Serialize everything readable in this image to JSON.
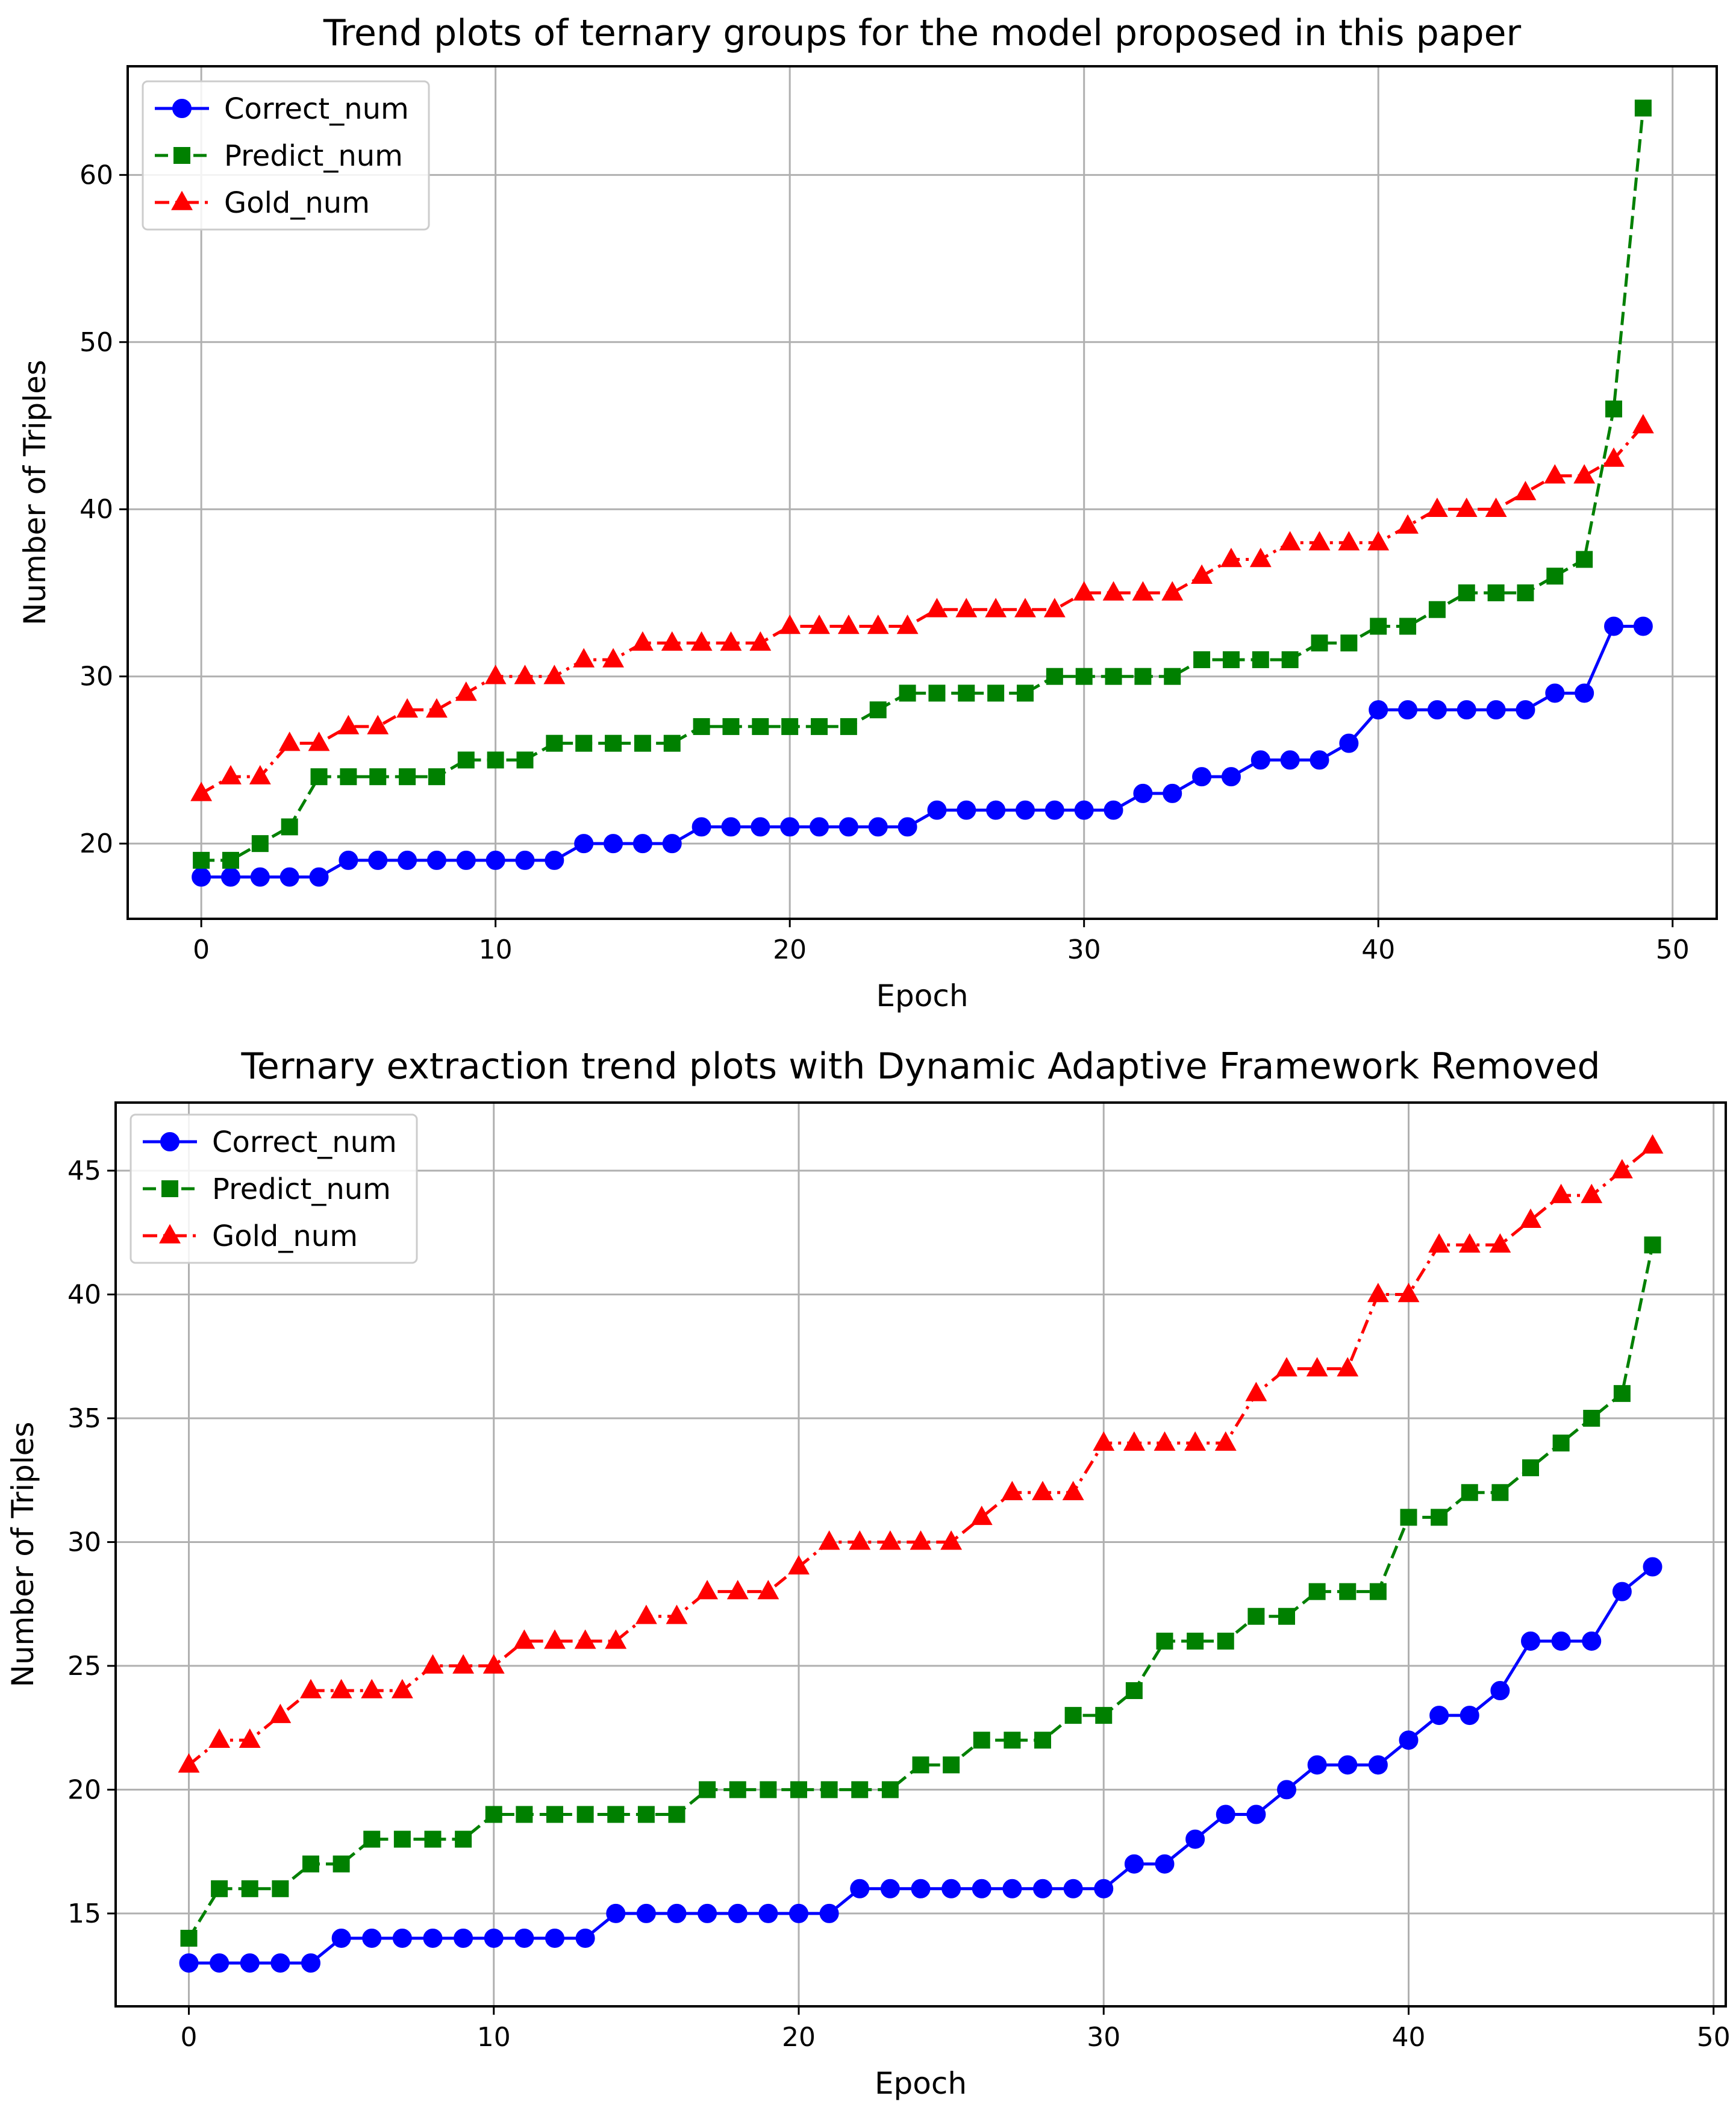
{
  "chart_data": [
    {
      "type": "line",
      "title": "Trend plots of ternary groups for the model proposed in this paper",
      "xlabel": "Epoch",
      "ylabel": "Number of Triples",
      "xlim": [
        -2.5,
        51.5
      ],
      "ylim": [
        15.5,
        66.5
      ],
      "xticks": [
        0,
        10,
        20,
        30,
        40,
        50
      ],
      "yticks": [
        20,
        30,
        40,
        50,
        60
      ],
      "grid": true,
      "legend_position": "top-left",
      "x": [
        0,
        1,
        2,
        3,
        4,
        5,
        6,
        7,
        8,
        9,
        10,
        11,
        12,
        13,
        14,
        15,
        16,
        17,
        18,
        19,
        20,
        21,
        22,
        23,
        24,
        25,
        26,
        27,
        28,
        29,
        30,
        31,
        32,
        33,
        34,
        35,
        36,
        37,
        38,
        39,
        40,
        41,
        42,
        43,
        44,
        45,
        46,
        47,
        48,
        49
      ],
      "series": [
        {
          "name": "Correct_num",
          "color": "#0000ff",
          "linestyle": "solid",
          "marker": "circle",
          "values": [
            18,
            18,
            18,
            18,
            18,
            19,
            19,
            19,
            19,
            19,
            19,
            19,
            19,
            20,
            20,
            20,
            20,
            21,
            21,
            21,
            21,
            21,
            21,
            21,
            21,
            22,
            22,
            22,
            22,
            22,
            22,
            22,
            23,
            23,
            24,
            24,
            25,
            25,
            25,
            26,
            28,
            28,
            28,
            28,
            28,
            28,
            29,
            29,
            33,
            33
          ]
        },
        {
          "name": "Predict_num",
          "color": "#008000",
          "linestyle": "dashed",
          "marker": "square",
          "values": [
            19,
            19,
            20,
            21,
            24,
            24,
            24,
            24,
            24,
            25,
            25,
            25,
            26,
            26,
            26,
            26,
            26,
            27,
            27,
            27,
            27,
            27,
            27,
            28,
            29,
            29,
            29,
            29,
            29,
            30,
            30,
            30,
            30,
            30,
            31,
            31,
            31,
            31,
            32,
            32,
            33,
            33,
            34,
            35,
            35,
            35,
            36,
            37,
            46,
            64
          ]
        },
        {
          "name": "Gold_num",
          "color": "#ff0000",
          "linestyle": "dashdot",
          "marker": "triangle",
          "values": [
            23,
            24,
            24,
            26,
            26,
            27,
            27,
            28,
            28,
            29,
            30,
            30,
            30,
            31,
            31,
            32,
            32,
            32,
            32,
            32,
            33,
            33,
            33,
            33,
            33,
            34,
            34,
            34,
            34,
            34,
            35,
            35,
            35,
            35,
            36,
            37,
            37,
            38,
            38,
            38,
            38,
            39,
            40,
            40,
            40,
            41,
            42,
            42,
            43,
            45
          ]
        }
      ]
    },
    {
      "type": "line",
      "title": "Ternary extraction trend plots with Dynamic Adaptive Framework Removed",
      "xlabel": "Epoch",
      "ylabel": "Number of Triples",
      "xlim": [
        -2.4,
        50.4
      ],
      "ylim": [
        11.25,
        47.75
      ],
      "xticks": [
        0,
        10,
        20,
        30,
        40,
        50
      ],
      "yticks": [
        15,
        20,
        25,
        30,
        35,
        40,
        45
      ],
      "grid": true,
      "legend_position": "top-left",
      "x": [
        0,
        1,
        2,
        3,
        4,
        5,
        6,
        7,
        8,
        9,
        10,
        11,
        12,
        13,
        14,
        15,
        16,
        17,
        18,
        19,
        20,
        21,
        22,
        23,
        24,
        25,
        26,
        27,
        28,
        29,
        30,
        31,
        32,
        33,
        34,
        35,
        36,
        37,
        38,
        39,
        40,
        41,
        42,
        43,
        44,
        45,
        46,
        47,
        48
      ],
      "series": [
        {
          "name": "Correct_num",
          "color": "#0000ff",
          "linestyle": "solid",
          "marker": "circle",
          "values": [
            13,
            13,
            13,
            13,
            13,
            14,
            14,
            14,
            14,
            14,
            14,
            14,
            14,
            14,
            15,
            15,
            15,
            15,
            15,
            15,
            15,
            15,
            16,
            16,
            16,
            16,
            16,
            16,
            16,
            16,
            16,
            17,
            17,
            18,
            19,
            19,
            20,
            21,
            21,
            21,
            22,
            23,
            23,
            24,
            26,
            26,
            26,
            28,
            29
          ]
        },
        {
          "name": "Predict_num",
          "color": "#008000",
          "linestyle": "dashed",
          "marker": "square",
          "values": [
            14,
            16,
            16,
            16,
            17,
            17,
            18,
            18,
            18,
            18,
            19,
            19,
            19,
            19,
            19,
            19,
            19,
            20,
            20,
            20,
            20,
            20,
            20,
            20,
            21,
            21,
            22,
            22,
            22,
            23,
            23,
            24,
            26,
            26,
            26,
            27,
            27,
            28,
            28,
            28,
            31,
            31,
            32,
            32,
            33,
            34,
            35,
            36,
            42
          ]
        },
        {
          "name": "Gold_num",
          "color": "#ff0000",
          "linestyle": "dashdot",
          "marker": "triangle",
          "values": [
            21,
            22,
            22,
            23,
            24,
            24,
            24,
            24,
            25,
            25,
            25,
            26,
            26,
            26,
            26,
            27,
            27,
            28,
            28,
            28,
            29,
            30,
            30,
            30,
            30,
            30,
            31,
            32,
            32,
            32,
            34,
            34,
            34,
            34,
            34,
            36,
            37,
            37,
            37,
            40,
            40,
            42,
            42,
            42,
            43,
            44,
            44,
            45,
            46
          ]
        }
      ]
    }
  ]
}
